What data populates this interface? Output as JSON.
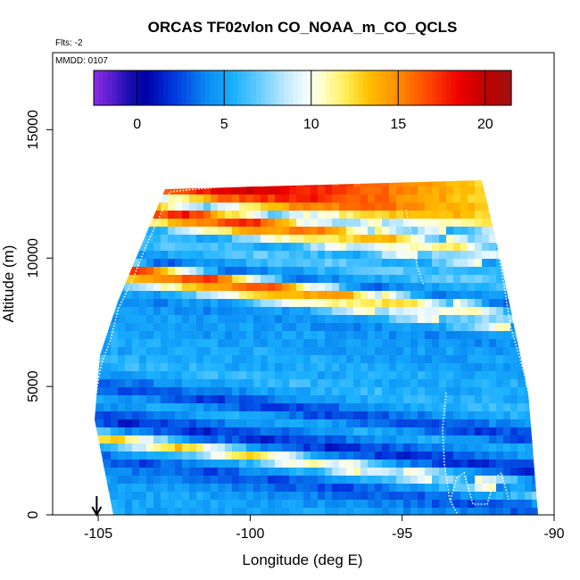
{
  "chart_data": {
    "type": "heatmap",
    "title": "ORCAS TF02vlon CO_NOAA_m_CO_QCLS",
    "subtitle_flts": "Flts: -2",
    "subtitle_mmdd": "MMDD: 0107",
    "xlabel": "Longitude (deg E)",
    "ylabel": "Altitude (m)",
    "xlim": [
      -106.5,
      -90
    ],
    "ylim": [
      0,
      18000
    ],
    "x_ticks": [
      -105,
      -100,
      -95,
      -90
    ],
    "x_tick_labels": [
      "-105",
      "-100",
      "-95",
      "-90"
    ],
    "y_ticks": [
      0,
      5000,
      10000,
      15000
    ],
    "y_tick_labels": [
      "0",
      "5000",
      "10000",
      "15000"
    ],
    "grid": false,
    "legend_position": "top (horizontal color bar inside plot)",
    "colorbar": {
      "range": [
        -2.5,
        21.5
      ],
      "ticks": [
        0,
        5,
        10,
        15,
        20
      ],
      "tick_labels": [
        "0",
        "5",
        "10",
        "15",
        "20"
      ],
      "stops": [
        {
          "v": -2.5,
          "color": "#8a2be2"
        },
        {
          "v": -1.5,
          "color": "#5a1fd0"
        },
        {
          "v": -0.5,
          "color": "#1a0fb0"
        },
        {
          "v": 0.5,
          "color": "#0000a8"
        },
        {
          "v": 2.0,
          "color": "#0033dd"
        },
        {
          "v": 4.0,
          "color": "#0a8af2"
        },
        {
          "v": 5.5,
          "color": "#1ab0ff"
        },
        {
          "v": 7.0,
          "color": "#66ccff"
        },
        {
          "v": 8.5,
          "color": "#bfe8ff"
        },
        {
          "v": 9.7,
          "color": "#f2fbff"
        },
        {
          "v": 10.6,
          "color": "#ffffcc"
        },
        {
          "v": 12.0,
          "color": "#ffee55"
        },
        {
          "v": 13.3,
          "color": "#ffc000"
        },
        {
          "v": 15.0,
          "color": "#ff8c00"
        },
        {
          "v": 16.5,
          "color": "#ff5000"
        },
        {
          "v": 18.5,
          "color": "#ee0000"
        },
        {
          "v": 20.0,
          "color": "#c00000"
        },
        {
          "v": 21.5,
          "color": "#a01010"
        }
      ]
    },
    "arrow_marker_longitude": -105.05,
    "altitude_profile": [
      {
        "alt": 500,
        "value": 5.0
      },
      {
        "alt": 1000,
        "value": 4.0
      },
      {
        "alt": 1500,
        "value": 2.5
      },
      {
        "alt": 2000,
        "value": 6.0
      },
      {
        "alt": 2300,
        "value": 13.5
      },
      {
        "alt": 2650,
        "value": 4.5
      },
      {
        "alt": 3000,
        "value": 1.5
      },
      {
        "alt": 3400,
        "value": 3.5
      },
      {
        "alt": 3800,
        "value": 5.5
      },
      {
        "alt": 4300,
        "value": 2.0
      },
      {
        "alt": 4800,
        "value": 4.5
      },
      {
        "alt": 5300,
        "value": 6.0
      },
      {
        "alt": 5800,
        "value": 5.0
      },
      {
        "alt": 6300,
        "value": 5.5
      },
      {
        "alt": 6800,
        "value": 4.5
      },
      {
        "alt": 7300,
        "value": 5.0
      },
      {
        "alt": 7800,
        "value": 4.0
      },
      {
        "alt": 8200,
        "value": 5.0
      },
      {
        "alt": 8600,
        "value": 13.0
      },
      {
        "alt": 9000,
        "value": 17.5
      },
      {
        "alt": 9400,
        "value": 3.0
      },
      {
        "alt": 9800,
        "value": 5.5
      },
      {
        "alt": 10200,
        "value": 7.0
      },
      {
        "alt": 10600,
        "value": 5.0
      },
      {
        "alt": 11000,
        "value": 13.0
      },
      {
        "alt": 11400,
        "value": 18.0
      },
      {
        "alt": 11800,
        "value": 7.0
      },
      {
        "alt": 12200,
        "value": 16.0
      },
      {
        "alt": 12600,
        "value": 19.5
      }
    ]
  }
}
